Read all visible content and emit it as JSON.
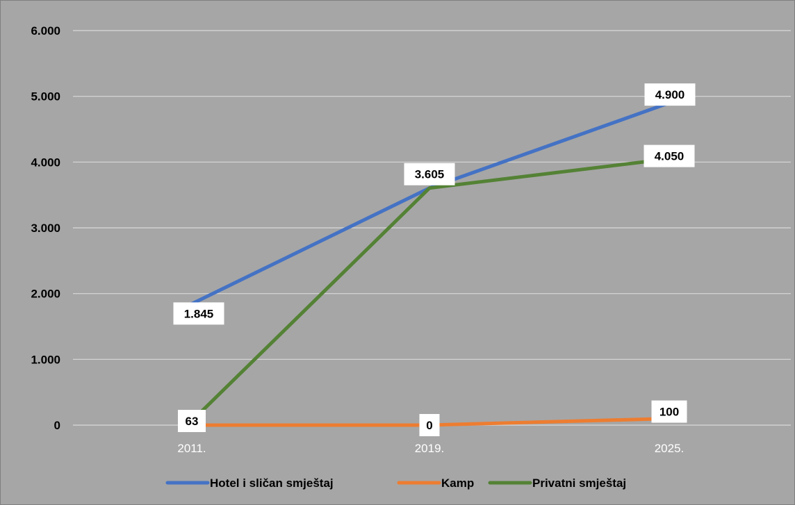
{
  "chart_data": {
    "type": "line",
    "title": "",
    "xlabel": "",
    "ylabel": "",
    "categories": [
      "2011.",
      "2019.",
      "2025."
    ],
    "y_ticks": [
      "0",
      "1.000",
      "2.000",
      "3.000",
      "4.000",
      "5.000",
      "6.000"
    ],
    "ylim": [
      0,
      6000
    ],
    "grid": true,
    "legend_position": "bottom",
    "series": [
      {
        "name": "Hotel i sličan smještaj",
        "color": "#4472c4",
        "values": [
          1845,
          3605,
          4900
        ],
        "labels": [
          "1.845",
          "",
          "4.900"
        ]
      },
      {
        "name": "Kamp",
        "color": "#ed7d31",
        "values": [
          0,
          0,
          100
        ],
        "labels": [
          "",
          "0",
          "100"
        ]
      },
      {
        "name": "Privatni smještaj",
        "color": "#548235",
        "values": [
          63,
          3605,
          4050
        ],
        "labels": [
          "63",
          "3.605",
          "4.050"
        ]
      }
    ]
  }
}
